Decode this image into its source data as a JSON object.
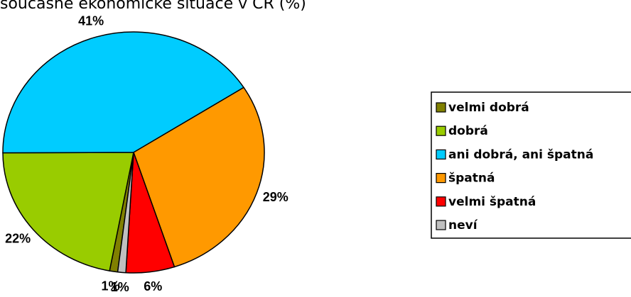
{
  "chart_data": {
    "type": "pie",
    "title": "současné ekonomické situace v ČR (%)",
    "categories": [
      "velmi dobrá",
      "dobrá",
      "ani dobrá, ani špatná",
      "špatná",
      "velmi špatná",
      "neví"
    ],
    "values": [
      1,
      22,
      41,
      29,
      6,
      1
    ],
    "value_labels": [
      "1%",
      "22%",
      "41%",
      "29%",
      "6%",
      "1%"
    ],
    "colors": [
      "#808000",
      "#99cc00",
      "#00ccff",
      "#ff9900",
      "#ff0000",
      "#c0c0c0"
    ],
    "legend": "right"
  }
}
